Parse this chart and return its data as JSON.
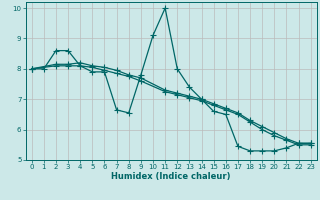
{
  "xlabel": "Humidex (Indice chaleur)",
  "bg_color": "#cce8e8",
  "grid_color": "#aaaaaa",
  "line_color": "#006666",
  "xlim": [
    -0.5,
    23.5
  ],
  "ylim": [
    5,
    10.2
  ],
  "yticks": [
    5,
    6,
    7,
    8,
    9,
    10
  ],
  "xticks": [
    0,
    1,
    2,
    3,
    4,
    5,
    6,
    7,
    8,
    9,
    10,
    11,
    12,
    13,
    14,
    15,
    16,
    17,
    18,
    19,
    20,
    21,
    22,
    23
  ],
  "line1_x": [
    0,
    1,
    2,
    3,
    4,
    5,
    6,
    7,
    8,
    9,
    10,
    11,
    12,
    13,
    14,
    15,
    16,
    17,
    18,
    19,
    20,
    21,
    22,
    23
  ],
  "line1_y": [
    8.0,
    8.0,
    8.6,
    8.6,
    8.1,
    7.9,
    7.9,
    6.65,
    6.55,
    7.8,
    9.1,
    10.0,
    8.0,
    7.4,
    7.0,
    6.6,
    6.5,
    5.45,
    5.3,
    5.3,
    5.3,
    5.4,
    5.55,
    5.55
  ],
  "line2_x": [
    0,
    2,
    3,
    4,
    5,
    6,
    7,
    8,
    9,
    11,
    12,
    13,
    14,
    15,
    16,
    17,
    18,
    19,
    20,
    21,
    22,
    23
  ],
  "line2_y": [
    8.0,
    8.15,
    8.15,
    8.2,
    8.1,
    8.05,
    7.95,
    7.8,
    7.7,
    7.3,
    7.2,
    7.1,
    7.0,
    6.85,
    6.7,
    6.55,
    6.3,
    6.1,
    5.9,
    5.7,
    5.55,
    5.55
  ],
  "line3_x": [
    0,
    2,
    3,
    4,
    5,
    6,
    7,
    8,
    9,
    11,
    12,
    13,
    14,
    15,
    16,
    17,
    18,
    19,
    20,
    21,
    22,
    23
  ],
  "line3_y": [
    8.0,
    8.1,
    8.1,
    8.1,
    8.05,
    7.95,
    7.85,
    7.75,
    7.6,
    7.25,
    7.15,
    7.05,
    6.95,
    6.8,
    6.65,
    6.5,
    6.25,
    6.0,
    5.8,
    5.65,
    5.5,
    5.5
  ]
}
